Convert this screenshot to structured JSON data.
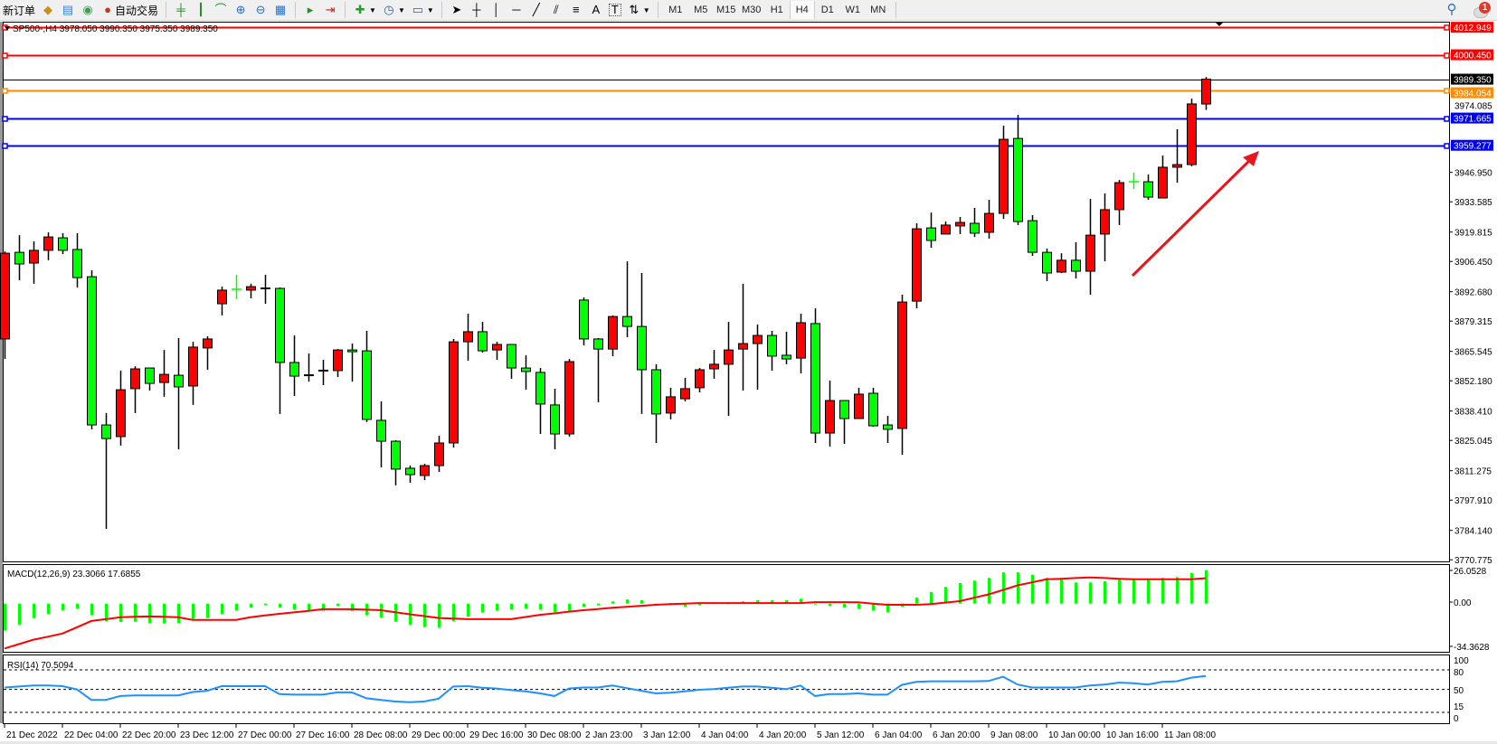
{
  "toolbar": {
    "new_order": "新订单",
    "auto_trading": "自动交易",
    "icons": [
      "gold-bars-icon",
      "history-report-icon",
      "signals-icon",
      "auto-trading-icon",
      "bar-chart-icon",
      "candlestick-icon",
      "line-chart-icon",
      "zoom-in-icon",
      "zoom-out-icon",
      "tile-windows-icon",
      "auto-scroll-icon",
      "chart-shift-icon",
      "indicators-icon",
      "periods-icon",
      "templates-icon",
      "cursor-icon",
      "crosshair-icon",
      "vertical-line-icon",
      "horizontal-line-icon",
      "trendline-icon",
      "fibo-channel-icon",
      "fibo-retracement-icon",
      "text-icon",
      "text-label-icon",
      "arrows-icon"
    ],
    "text_tool": "A",
    "label_tool": "T",
    "timeframes": [
      "M1",
      "M5",
      "M15",
      "M30",
      "H1",
      "H4",
      "D1",
      "W1",
      "MN"
    ],
    "active_timeframe": "H4",
    "notifications": "1"
  },
  "chart": {
    "header": "SP500-,H4  3978.050 3990.350 3975.350 3989.350",
    "bull_color": "#ff0000",
    "bear_color": "#00ff00",
    "price_ticks": [
      "3946.950",
      "3933.585",
      "3919.815",
      "3906.450",
      "3892.680",
      "3879.315",
      "3865.545",
      "3852.180",
      "3838.410",
      "3825.045",
      "3811.275",
      "3797.910",
      "3784.140",
      "3770.775"
    ],
    "partial_tick": "3974.085",
    "hlines": [
      {
        "price": "4012.949",
        "color": "#ff0000",
        "handles": true
      },
      {
        "price": "4000.450",
        "color": "#ff0000",
        "handles": true
      },
      {
        "price": "3989.350",
        "color": "#000000",
        "handles": false
      },
      {
        "price": "3984.054",
        "color": "#ff8c00",
        "handles": true
      },
      {
        "price": "3971.665",
        "color": "#0000ff",
        "handles": true
      },
      {
        "price": "3959.277",
        "color": "#0000ff",
        "handles": true
      }
    ],
    "arrow_color": "#e8141e",
    "time_labels": [
      "21 Dec 2022",
      "22 Dec 04:00",
      "22 Dec 20:00",
      "23 Dec 12:00",
      "27 Dec 00:00",
      "27 Dec 16:00",
      "28 Dec 08:00",
      "29 Dec 00:00",
      "29 Dec 16:00",
      "30 Dec 08:00",
      "2 Jan 23:00",
      "3 Jan 12:00",
      "4 Jan 04:00",
      "4 Jan 20:00",
      "5 Jan 12:00",
      "6 Jan 04:00",
      "6 Jan 20:00",
      "9 Jan 08:00",
      "10 Jan 00:00",
      "10 Jan 16:00",
      "11 Jan 08:00"
    ]
  },
  "macd": {
    "label": "MACD(12,26,9) 23.3066 17.6855",
    "axis": [
      "26.0528",
      "0.00",
      "-34.3628"
    ],
    "hist_color": "#00ff00",
    "signal_color": "#ff0000"
  },
  "rsi": {
    "label": "RSI(14) 70.5094",
    "axis": [
      "100",
      "80",
      "50",
      "15",
      "0"
    ],
    "line_color": "#1e90ff"
  },
  "chart_data": {
    "type": "candlestick",
    "symbol": "SP500-",
    "timeframe": "H4",
    "ylim": [
      3770.775,
      4025.0
    ],
    "ohlc": [
      [
        3871.2,
        3911.0,
        3862.1,
        3910.2
      ],
      [
        3910.6,
        3918.4,
        3897.9,
        3905.3
      ],
      [
        3905.7,
        3915.6,
        3896.3,
        3911.5
      ],
      [
        3911.5,
        3919.7,
        3907.0,
        3917.6
      ],
      [
        3917.2,
        3919.3,
        3909.8,
        3911.5
      ],
      [
        3911.9,
        3919.3,
        3894.6,
        3899.1
      ],
      [
        3899.5,
        3902.4,
        3830.1,
        3832.1
      ],
      [
        3832.1,
        3837.5,
        3784.8,
        3825.9
      ],
      [
        3826.8,
        3856.8,
        3822.7,
        3848.1
      ],
      [
        3848.6,
        3858.8,
        3837.5,
        3857.6
      ],
      [
        3858.0,
        3858.0,
        3847.7,
        3851.0
      ],
      [
        3851.4,
        3866.2,
        3844.9,
        3855.1
      ],
      [
        3854.7,
        3871.6,
        3821.0,
        3849.4
      ],
      [
        3849.8,
        3869.9,
        3841.2,
        3867.5
      ],
      [
        3867.1,
        3872.4,
        3857.2,
        3871.2
      ],
      [
        3887.2,
        3895.0,
        3881.9,
        3893.4
      ],
      [
        3893.8,
        3900.4,
        3889.3,
        3893.6
      ],
      [
        3893.4,
        3896.3,
        3889.7,
        3895.0
      ],
      [
        3894.2,
        3900.4,
        3887.2,
        3894.2
      ],
      [
        3894.2,
        3894.6,
        3837.1,
        3860.5
      ],
      [
        3860.5,
        3872.8,
        3845.3,
        3854.3
      ],
      [
        3854.7,
        3864.6,
        3851.8,
        3854.7
      ],
      [
        3856.8,
        3861.7,
        3850.2,
        3856.8
      ],
      [
        3856.8,
        3866.6,
        3853.9,
        3866.2
      ],
      [
        3866.2,
        3869.1,
        3851.8,
        3865.4
      ],
      [
        3865.8,
        3874.9,
        3833.4,
        3834.6
      ],
      [
        3834.2,
        3842.8,
        3812.8,
        3824.7
      ],
      [
        3824.7,
        3825.1,
        3804.6,
        3812.0
      ],
      [
        3812.4,
        3813.6,
        3805.8,
        3809.5
      ],
      [
        3809.1,
        3814.4,
        3807.0,
        3813.6
      ],
      [
        3813.6,
        3827.2,
        3810.7,
        3823.9
      ],
      [
        3823.9,
        3871.2,
        3821.8,
        3869.9
      ],
      [
        3869.9,
        3882.7,
        3861.3,
        3874.5
      ],
      [
        3874.5,
        3879.0,
        3865.0,
        3865.8
      ],
      [
        3866.2,
        3869.9,
        3861.7,
        3868.7
      ],
      [
        3868.7,
        3868.7,
        3853.1,
        3858.0
      ],
      [
        3858.0,
        3863.8,
        3848.1,
        3856.4
      ],
      [
        3856.0,
        3858.0,
        3828.0,
        3841.6
      ],
      [
        3841.2,
        3848.6,
        3821.0,
        3828.0
      ],
      [
        3828.0,
        3862.1,
        3826.8,
        3860.9
      ],
      [
        3888.9,
        3890.1,
        3868.3,
        3871.2
      ],
      [
        3871.2,
        3871.6,
        3842.4,
        3866.6
      ],
      [
        3866.6,
        3881.9,
        3863.4,
        3881.4
      ],
      [
        3881.4,
        3906.5,
        3872.0,
        3876.9
      ],
      [
        3876.9,
        3901.2,
        3837.1,
        3857.2
      ],
      [
        3857.2,
        3859.7,
        3823.9,
        3837.1
      ],
      [
        3837.5,
        3849.0,
        3834.6,
        3844.9
      ],
      [
        3844.0,
        3853.5,
        3842.8,
        3848.6
      ],
      [
        3849.0,
        3858.0,
        3846.9,
        3857.2
      ],
      [
        3857.6,
        3866.2,
        3853.1,
        3859.7
      ],
      [
        3859.7,
        3879.0,
        3836.2,
        3866.2
      ],
      [
        3866.6,
        3896.3,
        3847.7,
        3869.1
      ],
      [
        3869.1,
        3877.8,
        3848.1,
        3872.8
      ],
      [
        3872.8,
        3874.9,
        3856.8,
        3863.4
      ],
      [
        3863.8,
        3874.5,
        3859.7,
        3862.1
      ],
      [
        3862.5,
        3882.7,
        3855.5,
        3878.6
      ],
      [
        3878.2,
        3885.1,
        3823.9,
        3828.4
      ],
      [
        3828.4,
        3852.3,
        3822.3,
        3843.2
      ],
      [
        3843.2,
        3843.2,
        3823.5,
        3835.0
      ],
      [
        3835.0,
        3849.0,
        3835.0,
        3846.1
      ],
      [
        3846.5,
        3849.0,
        3831.3,
        3831.7
      ],
      [
        3832.1,
        3836.2,
        3823.9,
        3830.1
      ],
      [
        3830.5,
        3891.3,
        3818.5,
        3888.0
      ],
      [
        3888.4,
        3923.8,
        3885.1,
        3921.3
      ],
      [
        3921.7,
        3928.7,
        3912.7,
        3916.0
      ],
      [
        3918.9,
        3924.6,
        3918.9,
        3923.0
      ],
      [
        3922.6,
        3926.7,
        3918.9,
        3924.2
      ],
      [
        3923.8,
        3930.8,
        3917.6,
        3919.3
      ],
      [
        3919.7,
        3934.5,
        3916.8,
        3928.3
      ],
      [
        3928.3,
        3968.2,
        3925.8,
        3962.0
      ],
      [
        3962.4,
        3973.1,
        3923.0,
        3924.6
      ],
      [
        3925.0,
        3927.5,
        3909.0,
        3910.6
      ],
      [
        3910.6,
        3912.3,
        3897.5,
        3901.2
      ],
      [
        3901.6,
        3910.2,
        3901.2,
        3907.0
      ],
      [
        3907.0,
        3915.2,
        3898.7,
        3902.0
      ],
      [
        3902.0,
        3934.9,
        3891.3,
        3918.4
      ],
      [
        3918.9,
        3937.4,
        3906.5,
        3930.0
      ],
      [
        3930.0,
        3943.5,
        3923.0,
        3942.3
      ],
      [
        3942.7,
        3946.8,
        3939.4,
        3942.6
      ],
      [
        3942.7,
        3946.0,
        3934.5,
        3935.7
      ],
      [
        3935.3,
        3954.6,
        3935.3,
        3949.3
      ],
      [
        3949.3,
        3966.6,
        3942.3,
        3950.5
      ],
      [
        3950.5,
        3980.5,
        3949.7,
        3978.1
      ],
      [
        3978.05,
        3990.35,
        3975.35,
        3989.35
      ]
    ],
    "macd_hist": [
      -18.6,
      -14.7,
      -10.1,
      -7.2,
      -4.7,
      -3.4,
      -8.1,
      -12.2,
      -12.8,
      -12.6,
      -13.5,
      -13.8,
      -13.5,
      -10.6,
      -10.1,
      -7.2,
      -4.7,
      -2.8,
      -0.9,
      -2.8,
      -4.2,
      -4.9,
      -5.0,
      -1.7,
      -5.2,
      -8.1,
      -9.7,
      -12.6,
      -14.7,
      -16.4,
      -16.8,
      -12.2,
      -9.1,
      -6.3,
      -4.9,
      -4.2,
      -3.4,
      -4.2,
      -5.9,
      -4.9,
      -2.1,
      -1.2,
      1.5,
      2.9,
      2.3,
      -0.9,
      0.4,
      -2.1,
      -1.2,
      0.4,
      0.3,
      1.6,
      2.3,
      2.3,
      2.3,
      3.4,
      -0.4,
      -1.6,
      -2.9,
      -3.6,
      -4.9,
      -6.1,
      -2.1,
      4.2,
      8.1,
      11.6,
      14.3,
      16.0,
      17.9,
      21.8,
      21.8,
      20.0,
      17.9,
      16.9,
      14.7,
      14.7,
      15.6,
      16.9,
      16.6,
      16.5,
      17.9,
      18.4,
      21.2,
      23.31
    ],
    "macd_signal": [
      -31.2,
      -28.2,
      -25.1,
      -23.0,
      -20.8,
      -16.5,
      -12.1,
      -10.8,
      -9.5,
      -9.1,
      -8.9,
      -9.2,
      -9.5,
      -11.3,
      -11.3,
      -11.3,
      -11.3,
      -9.5,
      -8.2,
      -7.1,
      -6.1,
      -5.0,
      -3.9,
      -3.9,
      -3.9,
      -4.2,
      -4.6,
      -6.0,
      -7.4,
      -8.7,
      -10.0,
      -10.4,
      -10.8,
      -10.8,
      -10.8,
      -10.8,
      -9.3,
      -7.8,
      -6.8,
      -5.6,
      -4.6,
      -3.8,
      -2.9,
      -2.2,
      -1.5,
      -0.8,
      -0.3,
      0,
      0.4,
      0.4,
      0.4,
      0.4,
      0.4,
      0.4,
      0.4,
      0.4,
      1.0,
      1.0,
      1.0,
      0.9,
      0,
      -0.8,
      -0.8,
      -0.8,
      -0.4,
      0.7,
      1.7,
      4.1,
      6.4,
      9.5,
      12.7,
      14.8,
      16.9,
      17.3,
      17.8,
      18.2,
      17.8,
      17.3,
      16.9,
      16.9,
      16.9,
      16.9,
      16.9,
      17.69
    ],
    "macd_range": [
      -34.3628,
      26.0528
    ],
    "rsi": [
      53,
      54.5,
      56,
      56,
      55,
      50,
      34,
      34,
      40,
      41,
      41,
      41,
      41,
      46,
      48,
      55,
      55,
      55,
      55,
      43,
      42,
      42,
      42,
      45.5,
      45.5,
      36.5,
      34,
      31.5,
      30.5,
      31.5,
      36,
      54.5,
      55,
      52.5,
      51.5,
      49,
      47,
      44,
      40,
      51.5,
      53,
      53,
      56,
      52,
      48,
      44,
      45,
      47,
      49.5,
      50.5,
      52.5,
      54.5,
      54.5,
      52.5,
      50.5,
      56,
      40,
      43,
      43,
      44,
      42,
      42,
      57,
      61.5,
      62.5,
      62.5,
      62.5,
      62.5,
      63,
      69.5,
      57.5,
      53,
      53,
      53,
      53,
      56,
      57.5,
      60.5,
      59.5,
      57.5,
      61.5,
      62.5,
      68,
      70.51
    ],
    "rsi_levels": [
      80,
      50,
      15
    ],
    "rsi_range": [
      0,
      100
    ]
  }
}
